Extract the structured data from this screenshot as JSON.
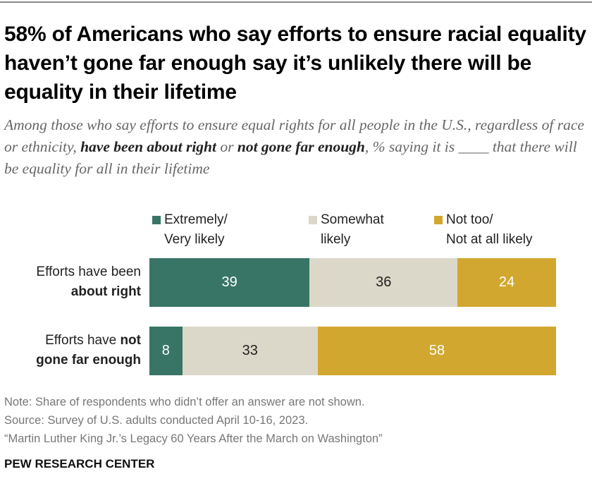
{
  "title": "58% of Americans who say efforts to ensure racial equality haven’t gone far enough say it’s unlikely there will be equality in their lifetime",
  "subtitle": {
    "part1": "Among those who say efforts to ensure equal rights for all people in the U.S., regardless of race or ethnicity, ",
    "bold1": "have been about right",
    "part2": " or ",
    "bold2": "not gone far enough",
    "part3": ", % saying it is ____ that there will be equality for all in their lifetime"
  },
  "chart_data": {
    "type": "bar",
    "orientation": "horizontal",
    "stacked": true,
    "categories": [
      {
        "plain": "Efforts have been",
        "bold": "about right"
      },
      {
        "plain": "Efforts have",
        "bold": "not gone far enough"
      }
    ],
    "series": [
      {
        "name": "Extremely/ Very likely",
        "line1": "Extremely/",
        "line2": "Very likely",
        "color": "#387566",
        "label_color": "#ffffff",
        "values": [
          39,
          8
        ]
      },
      {
        "name": "Somewhat likely",
        "line1": "Somewhat",
        "line2": "likely",
        "color": "#dcd8c9",
        "label_color": "#222222",
        "values": [
          36,
          33
        ]
      },
      {
        "name": "Not too/ Not at all likely",
        "line1": "Not too/",
        "line2": "Not at all likely",
        "color": "#d2a72f",
        "label_color": "#ffffff",
        "values": [
          24,
          58
        ]
      }
    ],
    "legend_position": "top",
    "grid": false
  },
  "notes": [
    "Note: Share of respondents who didn’t offer an answer are not shown.",
    "Source: Survey of U.S. adults conducted April 10-16, 2023.",
    "“Martin Luther King Jr.’s Legacy 60 Years After the March on Washington”"
  ],
  "source_org": "PEW RESEARCH CENTER"
}
